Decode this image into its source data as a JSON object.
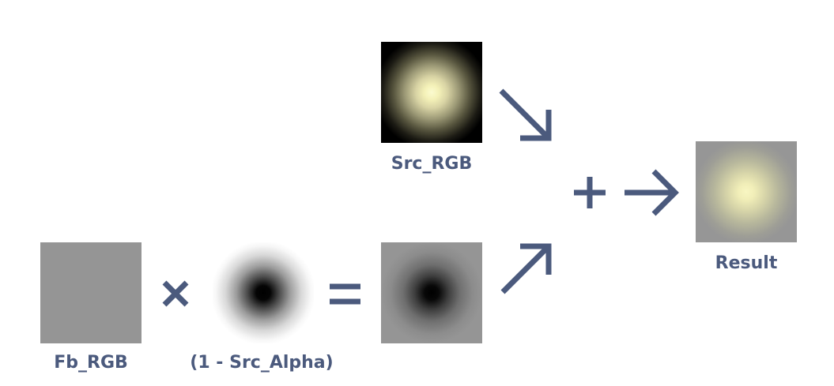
{
  "tiles": {
    "src_rgb": {
      "label": "Src_RGB"
    },
    "result": {
      "label": "Result"
    },
    "fb_rgb": {
      "label": "Fb_RGB"
    },
    "alpha": {
      "label": "(1 - Src_Alpha)"
    },
    "product": {}
  },
  "operators": {
    "multiply": "×",
    "equals": "=",
    "plus": "+"
  },
  "colors": {
    "accent": "#4b5a7d",
    "framebuffer_gray": "#959595",
    "glow": "#f4f1b8"
  }
}
